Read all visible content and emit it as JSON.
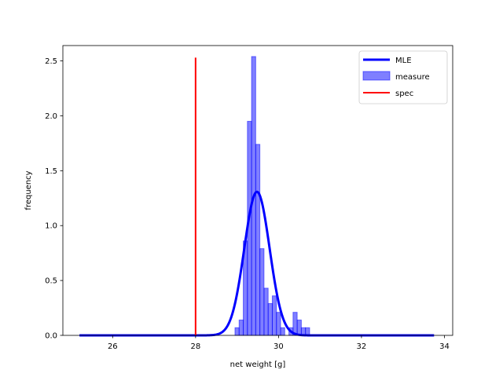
{
  "chart_data": {
    "type": "histogram",
    "xlabel": "net weight [g]",
    "ylabel": "frequency",
    "xlim": [
      24.8,
      34.2
    ],
    "ylim": [
      0,
      2.64
    ],
    "xticks": [
      "26",
      "28",
      "30",
      "32",
      "34"
    ],
    "yticks": [
      "0.0",
      "0.5",
      "1.0",
      "1.5",
      "2.0",
      "2.5"
    ],
    "grid": false,
    "legend_position": "top-right",
    "legend": [
      "MLE",
      "measure",
      "spec"
    ],
    "histogram": {
      "name": "measure",
      "color": "#0000ff",
      "bin_width": 0.1,
      "bins": [
        {
          "x0": 28.95,
          "value": 0.07
        },
        {
          "x0": 29.05,
          "value": 0.14
        },
        {
          "x0": 29.15,
          "value": 0.86
        },
        {
          "x0": 29.25,
          "value": 1.95
        },
        {
          "x0": 29.35,
          "value": 2.54
        },
        {
          "x0": 29.45,
          "value": 1.74
        },
        {
          "x0": 29.55,
          "value": 0.79
        },
        {
          "x0": 29.65,
          "value": 0.43
        },
        {
          "x0": 29.75,
          "value": 0.29
        },
        {
          "x0": 29.85,
          "value": 0.36
        },
        {
          "x0": 29.95,
          "value": 0.21
        },
        {
          "x0": 30.05,
          "value": 0.07
        },
        {
          "x0": 30.15,
          "value": 0.0
        },
        {
          "x0": 30.25,
          "value": 0.07
        },
        {
          "x0": 30.35,
          "value": 0.21
        },
        {
          "x0": 30.45,
          "value": 0.14
        },
        {
          "x0": 30.55,
          "value": 0.07
        },
        {
          "x0": 30.65,
          "value": 0.07
        }
      ]
    },
    "mle_curve": {
      "name": "MLE",
      "color": "#0000ff",
      "mean": 29.48,
      "sigma": 0.305,
      "x_range": [
        25.2,
        33.75
      ]
    },
    "spec_line": {
      "name": "spec",
      "color": "#ff0000",
      "x": 28.0,
      "y_range": [
        0,
        2.53
      ]
    }
  }
}
